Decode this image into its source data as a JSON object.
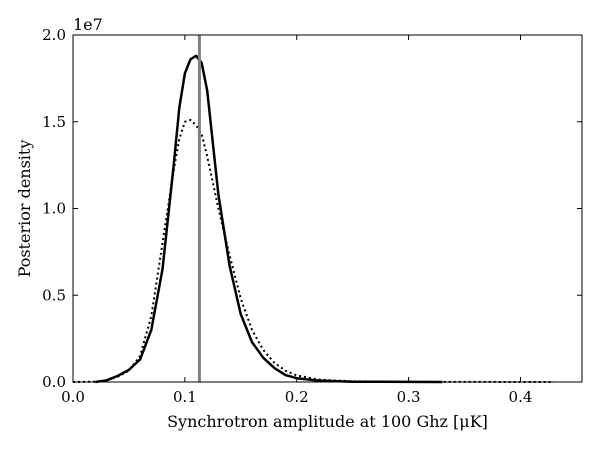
{
  "chart_data": {
    "type": "line",
    "xlabel": "Synchrotron amplitude at 100 Ghz [μK]",
    "ylabel": "Posterior density",
    "y_offset_label": "1e7",
    "xlim": [
      0.0,
      0.455
    ],
    "ylim": [
      0.0,
      20000000
    ],
    "x_ticks": [
      0.0,
      0.1,
      0.2,
      0.3,
      0.4
    ],
    "x_tick_labels": [
      "0.0",
      "0.1",
      "0.2",
      "0.3",
      "0.4"
    ],
    "y_ticks": [
      0,
      5000000,
      10000000,
      15000000,
      20000000
    ],
    "y_tick_labels": [
      "0.0",
      "0.5",
      "1.0",
      "1.5",
      "2.0"
    ],
    "grid": false,
    "legend": "none",
    "vline": {
      "x": 0.113,
      "color": "#808080"
    },
    "series": [
      {
        "style": "solid",
        "color": "#000000",
        "x": [
          0.02,
          0.03,
          0.04,
          0.05,
          0.06,
          0.07,
          0.08,
          0.09,
          0.095,
          0.1,
          0.105,
          0.11,
          0.115,
          0.12,
          0.125,
          0.13,
          0.14,
          0.15,
          0.16,
          0.17,
          0.18,
          0.19,
          0.2,
          0.22,
          0.25,
          0.3,
          0.33
        ],
        "y": [
          0,
          100000,
          350000,
          700000,
          1300000,
          3000000,
          6500000,
          12500000,
          15800000,
          17800000,
          18600000,
          18800000,
          18400000,
          16800000,
          13800000,
          10800000,
          6700000,
          3900000,
          2300000,
          1400000,
          800000,
          400000,
          220000,
          80000,
          20000,
          5000,
          0
        ]
      },
      {
        "style": "dotted",
        "color": "#000000",
        "x": [
          0.0,
          0.02,
          0.03,
          0.04,
          0.05,
          0.06,
          0.07,
          0.08,
          0.09,
          0.095,
          0.1,
          0.105,
          0.11,
          0.115,
          0.12,
          0.13,
          0.14,
          0.15,
          0.16,
          0.17,
          0.18,
          0.19,
          0.2,
          0.22,
          0.25,
          0.3,
          0.35,
          0.43
        ],
        "y": [
          0,
          20000,
          100000,
          300000,
          650000,
          1500000,
          3800000,
          8000000,
          12200000,
          14000000,
          15000000,
          15100000,
          14800000,
          14300000,
          13000000,
          10000000,
          7300000,
          4800000,
          3000000,
          1850000,
          1100000,
          650000,
          380000,
          140000,
          40000,
          10000,
          5000,
          0
        ]
      }
    ]
  }
}
